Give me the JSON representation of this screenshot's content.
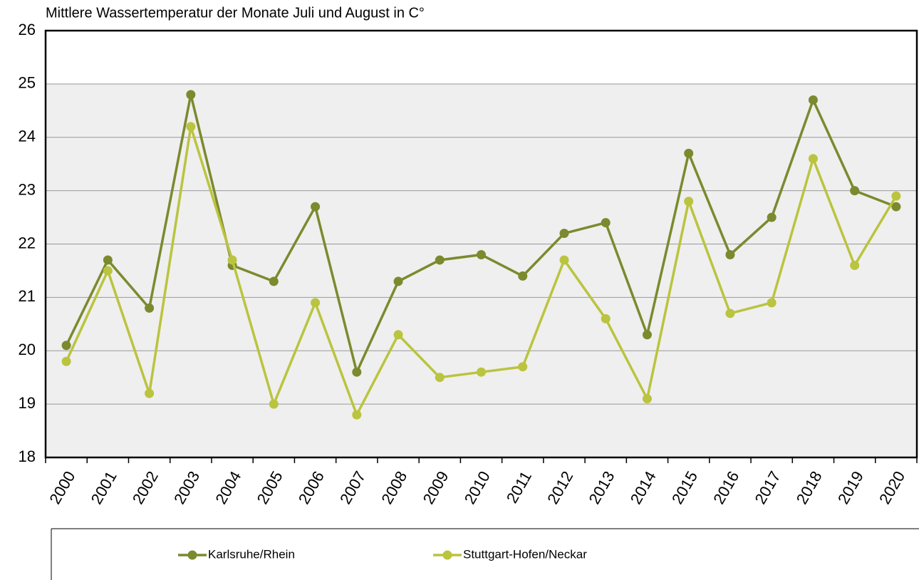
{
  "chart_data": {
    "type": "line",
    "title": "Mittlere Wassertemperatur der Monate Juli und August in C°",
    "categories": [
      "2000",
      "2001",
      "2002",
      "2003",
      "2004",
      "2005",
      "2006",
      "2007",
      "2008",
      "2009",
      "2010",
      "2011",
      "2012",
      "2013",
      "2014",
      "2015",
      "2016",
      "2017",
      "2018",
      "2019",
      "2020"
    ],
    "series": [
      {
        "name": "Karlsruhe/Rhein",
        "color": "#7b8a2e",
        "values": [
          20.1,
          21.7,
          20.8,
          24.8,
          21.6,
          21.3,
          22.7,
          19.6,
          21.3,
          21.7,
          21.8,
          21.4,
          22.2,
          22.4,
          20.3,
          23.7,
          21.8,
          22.5,
          24.7,
          23.0,
          22.7
        ]
      },
      {
        "name": "Stuttgart-Hofen/Neckar",
        "color": "#bac43e",
        "values": [
          19.8,
          21.5,
          19.2,
          24.2,
          21.7,
          19.0,
          20.9,
          18.8,
          20.3,
          19.5,
          19.6,
          19.7,
          21.7,
          20.6,
          19.1,
          22.8,
          20.7,
          20.9,
          23.6,
          21.6,
          22.9
        ]
      }
    ],
    "ylim": [
      18,
      26
    ],
    "yticks": [
      18,
      19,
      20,
      21,
      22,
      23,
      24,
      25,
      26
    ],
    "grid": true
  }
}
